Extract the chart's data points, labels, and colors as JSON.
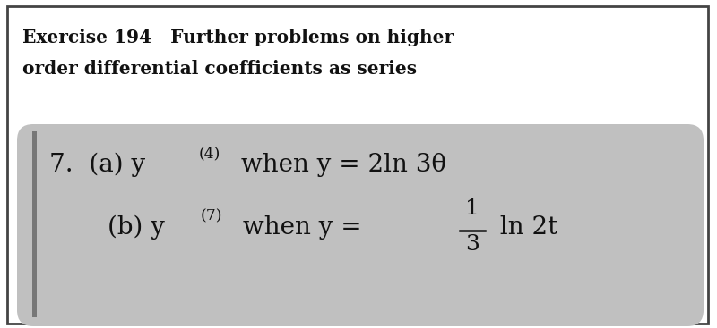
{
  "title_line1": "Exercise 194   Further problems on higher",
  "title_line2": "order differential coefficients as series",
  "bg_color": "#ffffff",
  "box_color": "#c0c0c0",
  "text_color": "#111111",
  "title_fontsize": 14.5,
  "body_fontsize": 20,
  "border_color": "#444444",
  "part_a_main": "(a) y",
  "part_a_sup": "(4)",
  "part_a_rest": " when y = 2ln 3θ",
  "part_b_main": "(b) y",
  "part_b_sup": "(7)",
  "part_b_mid": " when y = ",
  "part_b_frac_num": "1",
  "part_b_frac_den": "3",
  "part_b_end": " ln 2t",
  "problem_num": "7."
}
